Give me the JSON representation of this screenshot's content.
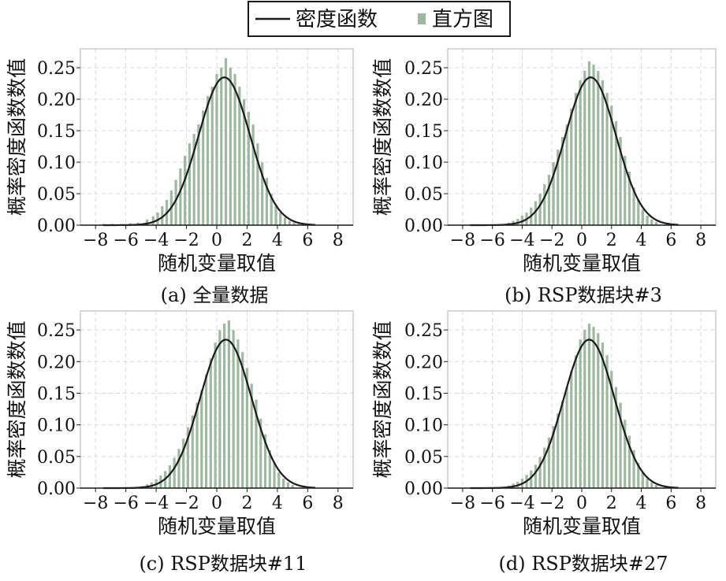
{
  "legend": {
    "density_label": "密度函数",
    "histogram_label": "直方图"
  },
  "colors": {
    "bar": "#9fb8a0",
    "curve": "#1a1a1a",
    "grid": "#d8d8d8",
    "frame": "#bdbdbd"
  },
  "chart_data": [
    {
      "type": "bar",
      "caption": "(a) 全量数据",
      "xlabel": "随机变量取值",
      "ylabel": "概率密度函数数值",
      "xlim": [
        -9,
        9
      ],
      "ylim": [
        0,
        0.28
      ],
      "xticks": [
        -8,
        -6,
        -4,
        -2,
        0,
        2,
        4,
        6,
        8
      ],
      "xtick_labels": [
        "−8",
        "−6",
        "−4",
        "−2",
        "0",
        "2",
        "4",
        "6",
        "8"
      ],
      "yticks": [
        0,
        0.05,
        0.1,
        0.15,
        0.2,
        0.25
      ],
      "ytick_labels": [
        "0.00",
        "0.05",
        "0.10",
        "0.15",
        "0.20",
        "0.25"
      ],
      "grid": true,
      "legend": "top-center",
      "histogram": {
        "bin_centers": [
          -7.5,
          -6.9,
          -6.3,
          -5.7,
          -5.2,
          -4.6,
          -4.2,
          -3.9,
          -3.6,
          -3.3,
          -3.0,
          -2.7,
          -2.4,
          -2.1,
          -1.8,
          -1.5,
          -1.2,
          -0.9,
          -0.6,
          -0.3,
          0.0,
          0.3,
          0.6,
          0.9,
          1.2,
          1.5,
          1.8,
          2.1,
          2.4,
          2.7,
          3.0,
          3.3,
          3.6,
          3.9,
          4.2,
          4.5,
          4.8,
          5.1,
          5.4
        ],
        "values": [
          0.002,
          0.002,
          0.002,
          0.003,
          0.004,
          0.009,
          0.014,
          0.02,
          0.03,
          0.04,
          0.055,
          0.072,
          0.09,
          0.11,
          0.13,
          0.145,
          0.16,
          0.182,
          0.205,
          0.22,
          0.24,
          0.25,
          0.265,
          0.25,
          0.24,
          0.22,
          0.2,
          0.18,
          0.16,
          0.13,
          0.1,
          0.075,
          0.05,
          0.03,
          0.02,
          0.012,
          0.007,
          0.004,
          0.002
        ]
      },
      "density": {
        "mean": 0.5,
        "sd": 1.7,
        "x_range": [
          -7.5,
          6.5
        ]
      }
    },
    {
      "type": "bar",
      "caption": "(b) RSP数据块#3",
      "xlabel": "随机变量取值",
      "ylabel": "概率密度函数数值",
      "xlim": [
        -9,
        9
      ],
      "ylim": [
        0,
        0.28
      ],
      "xticks": [
        -8,
        -6,
        -4,
        -2,
        0,
        2,
        4,
        6,
        8
      ],
      "xtick_labels": [
        "−8",
        "−6",
        "−4",
        "−2",
        "0",
        "2",
        "4",
        "6",
        "8"
      ],
      "yticks": [
        0,
        0.05,
        0.1,
        0.15,
        0.2,
        0.25
      ],
      "ytick_labels": [
        "0.00",
        "0.05",
        "0.10",
        "0.15",
        "0.20",
        "0.25"
      ],
      "grid": true,
      "legend": "top-center",
      "histogram": {
        "bin_centers": [
          -4.9,
          -4.6,
          -4.3,
          -4.0,
          -3.7,
          -3.4,
          -3.1,
          -2.8,
          -2.5,
          -2.2,
          -1.9,
          -1.6,
          -1.3,
          -1.0,
          -0.7,
          -0.4,
          -0.1,
          0.2,
          0.5,
          0.8,
          1.1,
          1.4,
          1.7,
          2.0,
          2.3,
          2.6,
          2.9,
          3.2,
          3.5,
          3.8,
          4.1,
          4.4,
          4.7,
          5.0
        ],
        "values": [
          0.004,
          0.007,
          0.01,
          0.015,
          0.02,
          0.028,
          0.038,
          0.05,
          0.065,
          0.08,
          0.1,
          0.12,
          0.14,
          0.16,
          0.185,
          0.21,
          0.23,
          0.245,
          0.26,
          0.255,
          0.245,
          0.23,
          0.21,
          0.19,
          0.165,
          0.14,
          0.11,
          0.085,
          0.06,
          0.04,
          0.025,
          0.015,
          0.009,
          0.005
        ]
      },
      "density": {
        "mean": 0.6,
        "sd": 1.7,
        "x_range": [
          -7.5,
          6.5
        ]
      }
    },
    {
      "type": "bar",
      "caption": "(c) RSP数据块#11",
      "xlabel": "随机变量取值",
      "ylabel": "概率密度函数数值",
      "xlim": [
        -9,
        9
      ],
      "ylim": [
        0,
        0.28
      ],
      "xticks": [
        -8,
        -6,
        -4,
        -2,
        0,
        2,
        4,
        6,
        8
      ],
      "xtick_labels": [
        "−8",
        "−6",
        "−4",
        "−2",
        "0",
        "2",
        "4",
        "6",
        "8"
      ],
      "yticks": [
        0,
        0.05,
        0.1,
        0.15,
        0.2,
        0.25
      ],
      "ytick_labels": [
        "0.00",
        "0.05",
        "0.10",
        "0.15",
        "0.20",
        "0.25"
      ],
      "grid": true,
      "legend": "top-center",
      "histogram": {
        "bin_centers": [
          -4.9,
          -4.6,
          -4.3,
          -4.0,
          -3.7,
          -3.4,
          -3.1,
          -2.8,
          -2.5,
          -2.2,
          -1.9,
          -1.6,
          -1.3,
          -1.0,
          -0.7,
          -0.4,
          -0.1,
          0.2,
          0.5,
          0.8,
          1.1,
          1.4,
          1.7,
          2.0,
          2.3,
          2.6,
          2.9,
          3.2,
          3.5,
          3.8,
          4.1,
          4.4,
          4.7,
          5.0
        ],
        "values": [
          0.003,
          0.006,
          0.009,
          0.014,
          0.02,
          0.027,
          0.036,
          0.048,
          0.062,
          0.078,
          0.096,
          0.115,
          0.135,
          0.155,
          0.18,
          0.205,
          0.23,
          0.25,
          0.26,
          0.265,
          0.25,
          0.235,
          0.215,
          0.19,
          0.165,
          0.14,
          0.11,
          0.085,
          0.06,
          0.04,
          0.025,
          0.015,
          0.009,
          0.005
        ]
      },
      "density": {
        "mean": 0.6,
        "sd": 1.7,
        "x_range": [
          -7.5,
          6.5
        ]
      }
    },
    {
      "type": "bar",
      "caption": "(d) RSP数据块#27",
      "xlabel": "随机变量取值",
      "ylabel": "概率密度函数数值",
      "xlim": [
        -9,
        9
      ],
      "ylim": [
        0,
        0.28
      ],
      "xticks": [
        -8,
        -6,
        -4,
        -2,
        0,
        2,
        4,
        6,
        8
      ],
      "xtick_labels": [
        "−8",
        "−6",
        "−4",
        "−2",
        "0",
        "2",
        "4",
        "6",
        "8"
      ],
      "yticks": [
        0,
        0.05,
        0.1,
        0.15,
        0.2,
        0.25
      ],
      "ytick_labels": [
        "0.00",
        "0.05",
        "0.10",
        "0.15",
        "0.20",
        "0.25"
      ],
      "grid": true,
      "legend": "top-center",
      "histogram": {
        "bin_centers": [
          -4.9,
          -4.6,
          -4.3,
          -4.0,
          -3.7,
          -3.4,
          -3.1,
          -2.8,
          -2.5,
          -2.2,
          -1.9,
          -1.6,
          -1.3,
          -1.0,
          -0.7,
          -0.4,
          -0.1,
          0.2,
          0.5,
          0.8,
          1.1,
          1.4,
          1.7,
          2.0,
          2.3,
          2.6,
          2.9,
          3.2,
          3.5,
          3.8,
          4.1,
          4.4,
          4.7,
          5.0
        ],
        "values": [
          0.004,
          0.007,
          0.01,
          0.015,
          0.021,
          0.028,
          0.037,
          0.049,
          0.064,
          0.08,
          0.098,
          0.118,
          0.138,
          0.16,
          0.185,
          0.21,
          0.235,
          0.25,
          0.26,
          0.255,
          0.245,
          0.23,
          0.21,
          0.185,
          0.16,
          0.135,
          0.108,
          0.083,
          0.06,
          0.04,
          0.025,
          0.015,
          0.009,
          0.005
        ]
      },
      "density": {
        "mean": 0.5,
        "sd": 1.7,
        "x_range": [
          -7.5,
          6.5
        ]
      }
    }
  ]
}
